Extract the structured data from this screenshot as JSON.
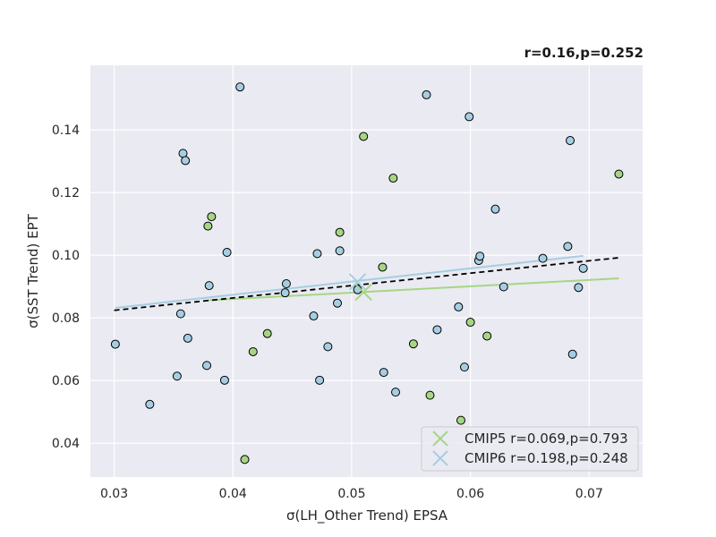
{
  "chart_data": {
    "type": "scatter",
    "title": "",
    "annotation": "r=0.16,p=0.252",
    "xlabel": "σ(LH_Other Trend) EPSA",
    "ylabel": "σ(SST Trend) EPT",
    "xlim": [
      0.028,
      0.0745
    ],
    "ylim": [
      0.0292,
      0.1606
    ],
    "x_ticks": [
      0.03,
      0.04,
      0.05,
      0.06,
      0.07
    ],
    "x_tick_labels": [
      "0.03",
      "0.04",
      "0.05",
      "0.06",
      "0.07"
    ],
    "y_ticks": [
      0.04,
      0.06,
      0.08,
      0.1,
      0.12,
      0.14
    ],
    "y_tick_labels": [
      "0.04",
      "0.06",
      "0.08",
      "0.10",
      "0.12",
      "0.14"
    ],
    "grid": true,
    "legend_position": "lower-right",
    "colors": {
      "background": "#eaeaf2",
      "grid": "#ffffff",
      "cmip5": "#a6d683",
      "cmip6": "#a6cee3",
      "all_fit": "#000000",
      "edge": "#000000"
    },
    "series": [
      {
        "name": "CMIP5 r=0.069,p=0.793",
        "color": "#a6d683",
        "points": [
          [
            0.0379,
            0.1093
          ],
          [
            0.0382,
            0.1123
          ],
          [
            0.0417,
            0.0692
          ],
          [
            0.0429,
            0.075
          ],
          [
            0.041,
            0.0348
          ],
          [
            0.049,
            0.1073
          ],
          [
            0.051,
            0.1379
          ],
          [
            0.0526,
            0.0962
          ],
          [
            0.0535,
            0.1246
          ],
          [
            0.0552,
            0.0717
          ],
          [
            0.0566,
            0.0553
          ],
          [
            0.0592,
            0.0473
          ],
          [
            0.06,
            0.0786
          ],
          [
            0.0614,
            0.0742
          ],
          [
            0.0725,
            0.1259
          ]
        ],
        "fit": [
          [
            0.0379,
            0.0856
          ],
          [
            0.0725,
            0.0926
          ]
        ],
        "mean": [
          0.051,
          0.0882
        ]
      },
      {
        "name": "CMIP6 r=0.198,p=0.248",
        "color": "#a6cee3",
        "points": [
          [
            0.0301,
            0.0716
          ],
          [
            0.033,
            0.0524
          ],
          [
            0.0353,
            0.0614
          ],
          [
            0.0356,
            0.0813
          ],
          [
            0.0358,
            0.1325
          ],
          [
            0.036,
            0.1302
          ],
          [
            0.0362,
            0.0735
          ],
          [
            0.0378,
            0.0648
          ],
          [
            0.038,
            0.0903
          ],
          [
            0.0393,
            0.0601
          ],
          [
            0.0395,
            0.1009
          ],
          [
            0.0406,
            0.1537
          ],
          [
            0.0444,
            0.088
          ],
          [
            0.0445,
            0.0909
          ],
          [
            0.0468,
            0.0806
          ],
          [
            0.0471,
            0.1005
          ],
          [
            0.0473,
            0.0601
          ],
          [
            0.048,
            0.0708
          ],
          [
            0.0488,
            0.0847
          ],
          [
            0.049,
            0.1014
          ],
          [
            0.0505,
            0.089
          ],
          [
            0.0527,
            0.0626
          ],
          [
            0.0537,
            0.0563
          ],
          [
            0.0563,
            0.1512
          ],
          [
            0.0572,
            0.0762
          ],
          [
            0.059,
            0.0835
          ],
          [
            0.0595,
            0.0643
          ],
          [
            0.0599,
            0.1442
          ],
          [
            0.0607,
            0.0983
          ],
          [
            0.0608,
            0.0997
          ],
          [
            0.0621,
            0.1147
          ],
          [
            0.0628,
            0.0899
          ],
          [
            0.0661,
            0.099
          ],
          [
            0.0682,
            0.1028
          ],
          [
            0.0684,
            0.1366
          ],
          [
            0.0686,
            0.0684
          ],
          [
            0.0691,
            0.0897
          ],
          [
            0.0695,
            0.0958
          ]
        ],
        "fit": [
          [
            0.0301,
            0.0832
          ],
          [
            0.0695,
            0.0998
          ]
        ],
        "mean": [
          0.0505,
          0.0915
        ]
      }
    ],
    "overall_fit": [
      [
        0.03,
        0.0824
      ],
      [
        0.0725,
        0.0992
      ]
    ]
  }
}
